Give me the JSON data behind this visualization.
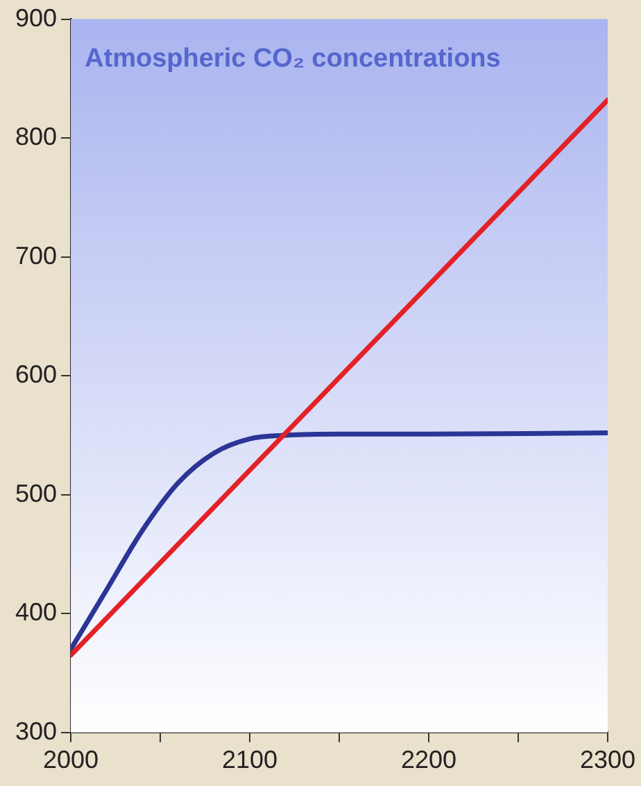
{
  "chart_data": {
    "type": "line",
    "title": "Atmospheric CO₂ concentrations",
    "marker": "none",
    "xlim": [
      2000,
      2300
    ],
    "ylim": [
      300,
      900
    ],
    "xticks": [
      2000,
      {
        "value": 2050,
        "label": null
      },
      2100,
      {
        "value": 2150,
        "label": null
      },
      2200,
      {
        "value": 2250,
        "label": null
      },
      2300
    ],
    "yticks": [
      300,
      400,
      500,
      600,
      700,
      800,
      900
    ],
    "series": [
      {
        "color": "#e32228",
        "x": [
          2000,
          2300
        ],
        "values": [
          365,
          832
        ]
      },
      {
        "color": "#2b3596",
        "x": [
          2000,
          2020,
          2040,
          2060,
          2080,
          2100,
          2120,
          2150,
          2200,
          2300
        ],
        "values": [
          370,
          420,
          470,
          510,
          535,
          547,
          550,
          551,
          551,
          552
        ]
      }
    ]
  }
}
